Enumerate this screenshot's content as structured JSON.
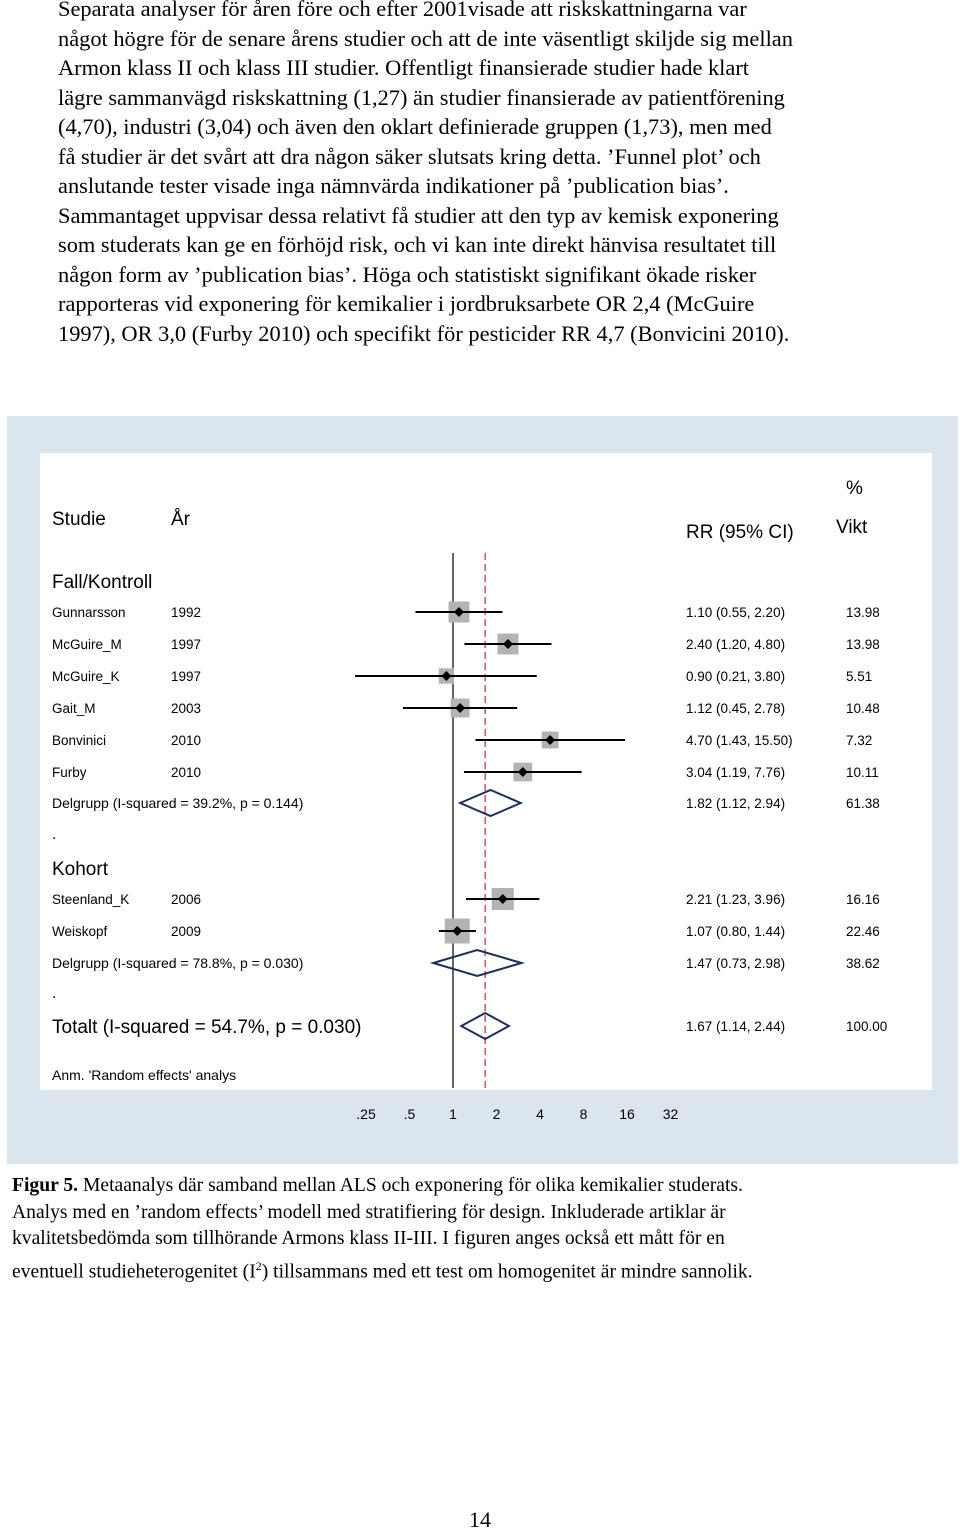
{
  "body_text": [
    "Separata analyser för åren före och efter 2001visade att riskskattningarna var",
    "något högre för de senare årens studier och att de inte väsentligt skiljde sig mellan",
    "Armon klass II och klass III studier. Offentligt finansierade studier hade klart",
    "lägre sammanvägd riskskattning (1,27) än studier finansierade av patientförening",
    "(4,70), industri (3,04) och även den oklart definierade gruppen (1,73), men med",
    "få studier är det svårt att dra någon säker slutsats kring detta. ’Funnel plot’ och",
    "anslutande tester visade inga nämnvärda indikationer på ’publication bias’.",
    "Sammantaget uppvisar dessa relativt få studier att den typ av kemisk exponering",
    "som studerats kan ge en förhöjd risk, och vi kan inte direkt hänvisa resultatet till",
    "någon form av ’publication bias’. Höga och statistiskt signifikant ökade risker",
    "rapporteras vid exponering för kemikalier i jordbruksarbete OR 2,4 (McGuire",
    "1997), OR 3,0 (Furby 2010) och specifikt för pesticider RR 4,7 (Bonvicini 2010)."
  ],
  "figure": {
    "header": {
      "study": "Studie",
      "year": "År",
      "rr": "RR (95% CI)",
      "percent": "%",
      "weight": "Vikt"
    },
    "note": "Anm. 'Random effects' analys",
    "dot1": ".",
    "dot2": ".",
    "colors": {
      "background": "#dbe5ee",
      "weight_box": "#b3b3b3",
      "null_line": "#000000",
      "overall_line": "#c0504d",
      "diamond": "#1f2d5c"
    }
  },
  "chart_data": {
    "type": "forest",
    "xscale": "log",
    "xticks": [
      ".25",
      ".5",
      "1",
      "2",
      "4",
      "8",
      "16",
      "32"
    ],
    "xlim": [
      0.25,
      32
    ],
    "null_value": 1,
    "overall_value": 1.67,
    "groups": [
      {
        "name": "Fall/Kontroll",
        "studies": [
          {
            "name": "Gunnarsson",
            "year": "1992",
            "rr": 1.1,
            "lo": 0.55,
            "hi": 2.2,
            "rr_text": "1.10 (0.55, 2.20)",
            "weight": "13.98"
          },
          {
            "name": "McGuire_M",
            "year": "1997",
            "rr": 2.4,
            "lo": 1.2,
            "hi": 4.8,
            "rr_text": "2.40 (1.20, 4.80)",
            "weight": "13.98"
          },
          {
            "name": "McGuire_K",
            "year": "1997",
            "rr": 0.9,
            "lo": 0.21,
            "hi": 3.8,
            "rr_text": "0.90 (0.21, 3.80)",
            "weight": "5.51"
          },
          {
            "name": "Gait_M",
            "year": "2003",
            "rr": 1.12,
            "lo": 0.45,
            "hi": 2.78,
            "rr_text": "1.12 (0.45, 2.78)",
            "weight": "10.48"
          },
          {
            "name": "Bonvinici",
            "year": "2010",
            "rr": 4.7,
            "lo": 1.43,
            "hi": 15.5,
            "rr_text": "4.70 (1.43, 15.50)",
            "weight": "7.32"
          },
          {
            "name": "Furby",
            "year": "2010",
            "rr": 3.04,
            "lo": 1.19,
            "hi": 7.76,
            "rr_text": "3.04 (1.19, 7.76)",
            "weight": "10.11"
          }
        ],
        "subtotal": {
          "label": "Delgrupp (I-squared = 39.2%, p = 0.144)",
          "rr": 1.82,
          "lo": 1.12,
          "hi": 2.94,
          "rr_text": "1.82 (1.12, 2.94)",
          "weight": "61.38"
        }
      },
      {
        "name": "Kohort",
        "studies": [
          {
            "name": "Steenland_K",
            "year": "2006",
            "rr": 2.21,
            "lo": 1.23,
            "hi": 3.96,
            "rr_text": "2.21 (1.23, 3.96)",
            "weight": "16.16"
          },
          {
            "name": "Weiskopf",
            "year": "2009",
            "rr": 1.07,
            "lo": 0.8,
            "hi": 1.44,
            "rr_text": "1.07 (0.80, 1.44)",
            "weight": "22.46"
          }
        ],
        "subtotal": {
          "label": "Delgrupp (I-squared = 78.8%, p = 0.030)",
          "rr": 1.47,
          "lo": 0.73,
          "hi": 2.98,
          "rr_text": "1.47 (0.73, 2.98)",
          "weight": "38.62"
        }
      }
    ],
    "total": {
      "label": "Totalt   (I-squared = 54.7%, p = 0.030)",
      "rr": 1.67,
      "lo": 1.14,
      "hi": 2.44,
      "rr_text": "1.67 (1.14, 2.44)",
      "weight": "100.00"
    }
  },
  "caption": {
    "label": "Figur 5.",
    "lines": [
      " Metaanalys där samband mellan ALS och exponering för olika kemikalier studerats.",
      "Analys med en ’random effects’ modell med stratifiering för design. Inkluderade artiklar är",
      "kvalitetsbedömda som tillhörande Armons klass II-III. I figuren anges också ett mått för en"
    ],
    "last_line_before": "eventuell studieheterogenitet (I",
    "last_line_sup": "2",
    "last_line_after": ") tillsammans med ett test om homogenitet är mindre sannolik."
  },
  "page_number": "14"
}
